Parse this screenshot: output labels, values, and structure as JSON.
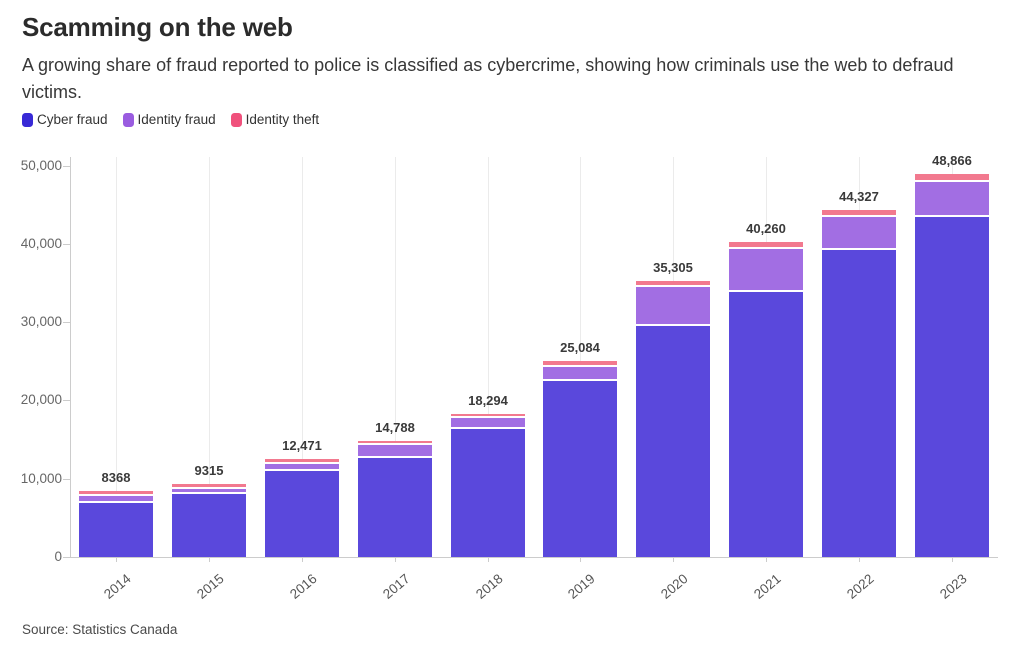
{
  "chart_data": {
    "type": "bar",
    "stacked": true,
    "title": "Scamming on the web",
    "subtitle": "A growing share of fraud reported to police is classified as cybercrime, showing how criminals use the web to defraud victims.",
    "source": "Source: Statistics Canada",
    "categories": [
      "2014",
      "2015",
      "2016",
      "2017",
      "2018",
      "2019",
      "2020",
      "2021",
      "2022",
      "2023"
    ],
    "series": [
      {
        "name": "Cyber fraud",
        "color": "#5a48dc",
        "legend_color": "#3829d6",
        "values": [
          7100,
          8330,
          11240,
          12960,
          16540,
          22700,
          29700,
          34100,
          39500,
          43700
        ]
      },
      {
        "name": "Identity fraud",
        "color": "#a26ee3",
        "legend_color": "#9a5ce0",
        "values": [
          950,
          640,
          940,
          1540,
          1430,
          1860,
          4990,
          5450,
          4150,
          4500
        ]
      },
      {
        "name": "Identity theft",
        "color": "#f2798f",
        "legend_color": "#f0517c",
        "values": [
          318,
          345,
          291,
          288,
          324,
          524,
          615,
          710,
          677,
          666
        ]
      }
    ],
    "totals": [
      8368,
      9315,
      12471,
      14788,
      18294,
      25084,
      35305,
      40260,
      44327,
      48866
    ],
    "total_labels": [
      "8368",
      "9315",
      "12,471",
      "14,788",
      "18,294",
      "25,084",
      "35,305",
      "40,260",
      "44,327",
      "48,866"
    ],
    "xlabel": "",
    "ylabel": "",
    "ylim": [
      0,
      50000
    ],
    "yticks": [
      {
        "value": 0,
        "label": "0"
      },
      {
        "value": 10000,
        "label": "10,000"
      },
      {
        "value": 20000,
        "label": "20,000"
      },
      {
        "value": 30000,
        "label": "30,000"
      },
      {
        "value": 40000,
        "label": "40,000"
      },
      {
        "value": 50000,
        "label": "50,000"
      }
    ],
    "grid": "vertical",
    "legend_position": "top-left",
    "axis_color": "#cccccc",
    "gridline_color": "#ebebeb",
    "separator_color": "#ffffff"
  }
}
